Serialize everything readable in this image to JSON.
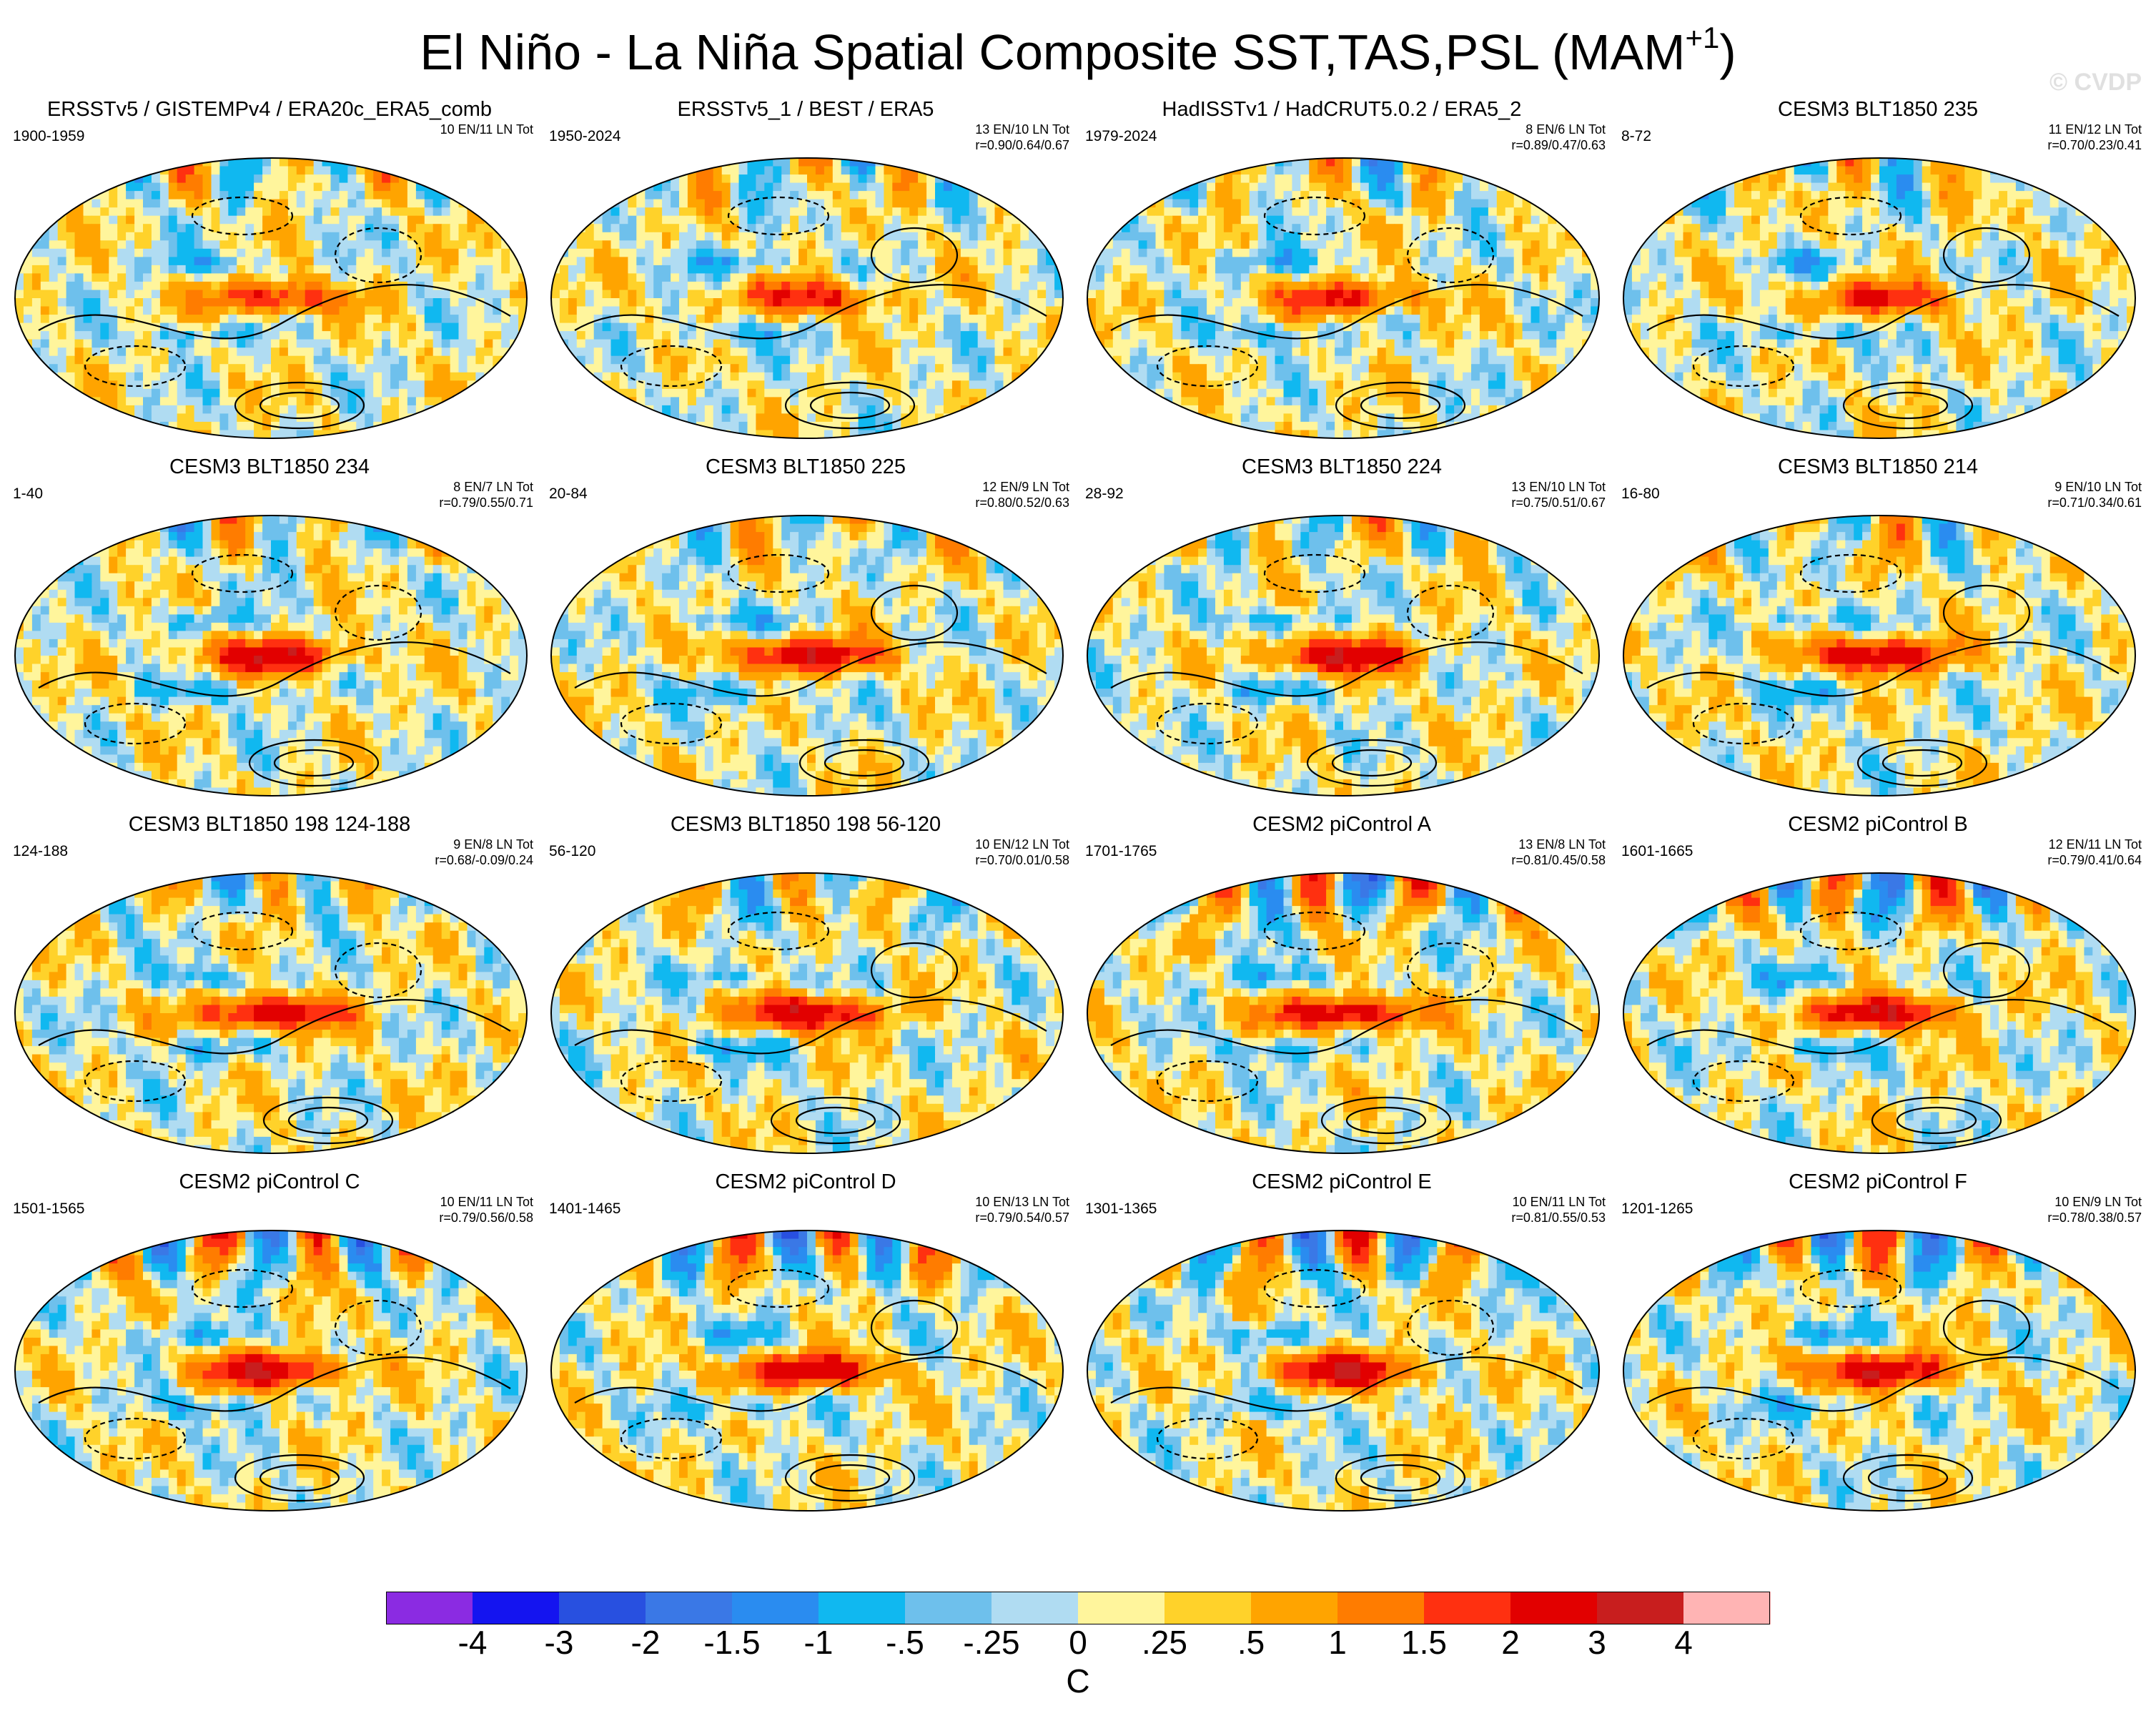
{
  "figure": {
    "title_main": "El Niño - La Niña Spatial Composite SST,TAS,PSL (MAM",
    "title_sup": "+1",
    "title_close": ")",
    "watermark": "© CVDP"
  },
  "panels": [
    {
      "title": "ERSSTv5 / GISTEMPv4 / ERA20c_ERA5_comb",
      "years": "1900-1959",
      "stats": [
        "10 EN/11 LN Tot"
      ]
    },
    {
      "title": "ERSSTv5_1 / BEST / ERA5",
      "years": "1950-2024",
      "stats": [
        "13 EN/10 LN Tot",
        "r=0.90/0.64/0.67"
      ]
    },
    {
      "title": "HadISSTv1 / HadCRUT5.0.2 / ERA5_2",
      "years": "1979-2024",
      "stats": [
        "8 EN/6 LN Tot",
        "r=0.89/0.47/0.63"
      ]
    },
    {
      "title": "CESM3 BLT1850 235",
      "years": "8-72",
      "stats": [
        "11 EN/12 LN Tot",
        "r=0.70/0.23/0.41"
      ]
    },
    {
      "title": "CESM3 BLT1850 234",
      "years": "1-40",
      "stats": [
        "8 EN/7 LN Tot",
        "r=0.79/0.55/0.71"
      ]
    },
    {
      "title": "CESM3 BLT1850 225",
      "years": "20-84",
      "stats": [
        "12 EN/9 LN Tot",
        "r=0.80/0.52/0.63"
      ]
    },
    {
      "title": "CESM3 BLT1850 224",
      "years": "28-92",
      "stats": [
        "13 EN/10 LN Tot",
        "r=0.75/0.51/0.67"
      ]
    },
    {
      "title": "CESM3 BLT1850 214",
      "years": "16-80",
      "stats": [
        "9 EN/10 LN Tot",
        "r=0.71/0.34/0.61"
      ]
    },
    {
      "title": "CESM3 BLT1850 198 124-188",
      "years": "124-188",
      "stats": [
        "9 EN/8 LN Tot",
        "r=0.68/-0.09/0.24"
      ]
    },
    {
      "title": "CESM3 BLT1850 198 56-120",
      "years": "56-120",
      "stats": [
        "10 EN/12 LN Tot",
        "r=0.70/0.01/0.58"
      ]
    },
    {
      "title": "CESM2 piControl A",
      "years": "1701-1765",
      "stats": [
        "13 EN/8 LN Tot",
        "r=0.81/0.45/0.58"
      ]
    },
    {
      "title": "CESM2 piControl B",
      "years": "1601-1665",
      "stats": [
        "12 EN/11 LN Tot",
        "r=0.79/0.41/0.64"
      ]
    },
    {
      "title": "CESM2 piControl C",
      "years": "1501-1565",
      "stats": [
        "10 EN/11 LN Tot",
        "r=0.79/0.56/0.58"
      ]
    },
    {
      "title": "CESM2 piControl D",
      "years": "1401-1465",
      "stats": [
        "10 EN/13 LN Tot",
        "r=0.79/0.54/0.57"
      ]
    },
    {
      "title": "CESM2 piControl E",
      "years": "1301-1365",
      "stats": [
        "10 EN/11 LN Tot",
        "r=0.81/0.55/0.53"
      ]
    },
    {
      "title": "CESM2 piControl F",
      "years": "1201-1265",
      "stats": [
        "10 EN/9 LN Tot",
        "r=0.78/0.38/0.57"
      ]
    }
  ],
  "colorbar": {
    "units": "C",
    "tick_labels": [
      "-4",
      "-3",
      "-2",
      "-1.5",
      "-1",
      "-.5",
      "-.25",
      "0",
      ".25",
      ".5",
      "1",
      "1.5",
      "2",
      "3",
      "4"
    ],
    "colors": [
      "#8b2be2",
      "#1414f0",
      "#2850e0",
      "#3a78e6",
      "#2a8cf0",
      "#10b8f0",
      "#6ec0ec",
      "#b0dcf2",
      "#fff59c",
      "#ffd22a",
      "#ffa400",
      "#ff7c00",
      "#ff3010",
      "#e20000",
      "#c81e1e",
      "#ffb4b4"
    ]
  },
  "chart_data": {
    "type": "heatmap",
    "title": "El Niño - La Niña Spatial Composite SST,TAS,PSL (MAM+1)",
    "projection": "global map (Robinson-like), Pacific-centered",
    "variables": [
      "SST",
      "TAS",
      "PSL"
    ],
    "season": "MAM+1",
    "units": "C",
    "contour_levels": [
      -4,
      -3,
      -2,
      -1.5,
      -1,
      -0.5,
      -0.25,
      0,
      0.25,
      0.5,
      1,
      1.5,
      2,
      3,
      4
    ],
    "psl_contours": "black lines; dashed negative, solid positive",
    "panels": [
      {
        "name": "ERSSTv5 / GISTEMPv4 / ERA20c_ERA5_comb",
        "years": "1900-1959",
        "el_nino_events": 10,
        "la_nina_events": 11
      },
      {
        "name": "ERSSTv5_1 / BEST / ERA5",
        "years": "1950-2024",
        "el_nino_events": 13,
        "la_nina_events": 10,
        "r": [
          0.9,
          0.64,
          0.67
        ]
      },
      {
        "name": "HadISSTv1 / HadCRUT5.0.2 / ERA5_2",
        "years": "1979-2024",
        "el_nino_events": 8,
        "la_nina_events": 6,
        "r": [
          0.89,
          0.47,
          0.63
        ]
      },
      {
        "name": "CESM3 BLT1850 235",
        "years": "8-72",
        "el_nino_events": 11,
        "la_nina_events": 12,
        "r": [
          0.7,
          0.23,
          0.41
        ]
      },
      {
        "name": "CESM3 BLT1850 234",
        "years": "1-40",
        "el_nino_events": 8,
        "la_nina_events": 7,
        "r": [
          0.79,
          0.55,
          0.71
        ]
      },
      {
        "name": "CESM3 BLT1850 225",
        "years": "20-84",
        "el_nino_events": 12,
        "la_nina_events": 9,
        "r": [
          0.8,
          0.52,
          0.63
        ]
      },
      {
        "name": "CESM3 BLT1850 224",
        "years": "28-92",
        "el_nino_events": 13,
        "la_nina_events": 10,
        "r": [
          0.75,
          0.51,
          0.67
        ]
      },
      {
        "name": "CESM3 BLT1850 214",
        "years": "16-80",
        "el_nino_events": 9,
        "la_nina_events": 10,
        "r": [
          0.71,
          0.34,
          0.61
        ]
      },
      {
        "name": "CESM3 BLT1850 198 124-188",
        "years": "124-188",
        "el_nino_events": 9,
        "la_nina_events": 8,
        "r": [
          0.68,
          -0.09,
          0.24
        ]
      },
      {
        "name": "CESM3 BLT1850 198 56-120",
        "years": "56-120",
        "el_nino_events": 10,
        "la_nina_events": 12,
        "r": [
          0.7,
          0.01,
          0.58
        ]
      },
      {
        "name": "CESM2 piControl A",
        "years": "1701-1765",
        "el_nino_events": 13,
        "la_nina_events": 8,
        "r": [
          0.81,
          0.45,
          0.58
        ]
      },
      {
        "name": "CESM2 piControl B",
        "years": "1601-1665",
        "el_nino_events": 12,
        "la_nina_events": 11,
        "r": [
          0.79,
          0.41,
          0.64
        ]
      },
      {
        "name": "CESM2 piControl C",
        "years": "1501-1565",
        "el_nino_events": 10,
        "la_nina_events": 11,
        "r": [
          0.79,
          0.56,
          0.58
        ]
      },
      {
        "name": "CESM2 piControl D",
        "years": "1401-1465",
        "el_nino_events": 10,
        "la_nina_events": 13,
        "r": [
          0.79,
          0.54,
          0.57
        ]
      },
      {
        "name": "CESM2 piControl E",
        "years": "1301-1365",
        "el_nino_events": 10,
        "la_nina_events": 11,
        "r": [
          0.81,
          0.55,
          0.53
        ]
      },
      {
        "name": "CESM2 piControl F",
        "years": "1201-1265",
        "el_nino_events": 10,
        "la_nina_events": 9,
        "r": [
          0.78,
          0.38,
          0.57
        ]
      }
    ]
  }
}
